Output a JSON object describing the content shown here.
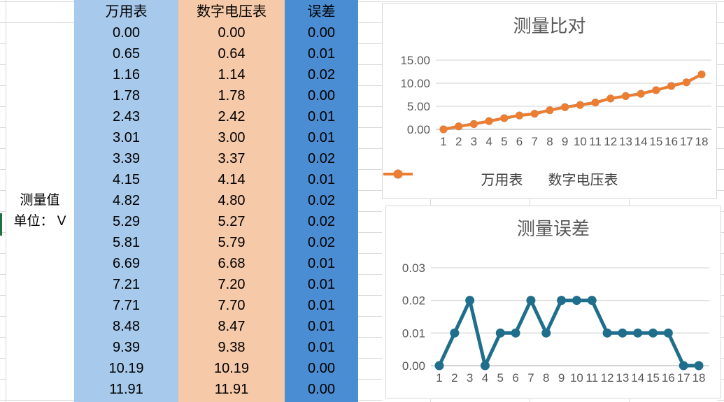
{
  "sheet": {
    "row_label": {
      "line1": "测量值",
      "line2": "单位： V"
    },
    "columns": [
      {
        "header": "万用表",
        "color": "#a6c9ec"
      },
      {
        "header": "数字电压表",
        "color": "#f6c9a8"
      },
      {
        "header": "误差",
        "color": "#4a8dd3"
      }
    ],
    "rows": [
      [
        "0.00",
        "0.00",
        "0.00"
      ],
      [
        "0.65",
        "0.64",
        "0.01"
      ],
      [
        "1.16",
        "1.14",
        "0.02"
      ],
      [
        "1.78",
        "1.78",
        "0.00"
      ],
      [
        "2.43",
        "2.42",
        "0.01"
      ],
      [
        "3.01",
        "3.00",
        "0.01"
      ],
      [
        "3.39",
        "3.37",
        "0.02"
      ],
      [
        "4.15",
        "4.14",
        "0.01"
      ],
      [
        "4.82",
        "4.80",
        "0.02"
      ],
      [
        "5.29",
        "5.27",
        "0.02"
      ],
      [
        "5.81",
        "5.79",
        "0.02"
      ],
      [
        "6.69",
        "6.68",
        "0.01"
      ],
      [
        "7.21",
        "7.20",
        "0.01"
      ],
      [
        "7.71",
        "7.70",
        "0.01"
      ],
      [
        "8.48",
        "8.47",
        "0.01"
      ],
      [
        "9.39",
        "9.38",
        "0.01"
      ],
      [
        "10.19",
        "10.19",
        "0.00"
      ],
      [
        "11.91",
        "11.91",
        "0.00"
      ]
    ]
  },
  "chart_data": [
    {
      "type": "line",
      "title": "测量比对",
      "categories": [
        "1",
        "2",
        "3",
        "4",
        "5",
        "6",
        "7",
        "8",
        "9",
        "10",
        "11",
        "12",
        "13",
        "14",
        "15",
        "16",
        "17",
        "18"
      ],
      "series": [
        {
          "name": "万用表",
          "color": "#1f6e8c",
          "values": [
            0.0,
            0.65,
            1.16,
            1.78,
            2.43,
            3.01,
            3.39,
            4.15,
            4.82,
            5.29,
            5.81,
            6.69,
            7.21,
            7.71,
            8.48,
            9.39,
            10.19,
            11.91
          ]
        },
        {
          "name": "数字电压表",
          "color": "#ed7d31",
          "values": [
            0.0,
            0.64,
            1.14,
            1.78,
            2.42,
            3.0,
            3.37,
            4.14,
            4.8,
            5.27,
            5.79,
            6.68,
            7.2,
            7.7,
            8.47,
            9.38,
            10.19,
            11.91
          ]
        }
      ],
      "y_ticks": [
        "0.00",
        "5.00",
        "10.00",
        "15.00"
      ],
      "ylim": [
        0,
        15
      ],
      "xlabel": "",
      "ylabel": "",
      "grid": true,
      "legend_position": "bottom"
    },
    {
      "type": "line",
      "title": "测量误差",
      "categories": [
        "1",
        "2",
        "3",
        "4",
        "5",
        "6",
        "7",
        "8",
        "9",
        "10",
        "11",
        "12",
        "13",
        "14",
        "15",
        "16",
        "17",
        "18"
      ],
      "series": [
        {
          "name": "误差",
          "color": "#1f6e8c",
          "values": [
            0.0,
            0.01,
            0.02,
            0.0,
            0.01,
            0.01,
            0.02,
            0.01,
            0.02,
            0.02,
            0.02,
            0.01,
            0.01,
            0.01,
            0.01,
            0.01,
            0.0,
            0.0
          ]
        }
      ],
      "y_ticks": [
        "0.00",
        "0.01",
        "0.02",
        "0.03"
      ],
      "ylim": [
        0,
        0.03
      ],
      "xlabel": "",
      "ylabel": "",
      "grid": true,
      "legend_position": "none"
    }
  ],
  "colors": {
    "grid": "#d9d9d9",
    "axis": "#bfbfbf",
    "axis_text": "#595959",
    "title_text": "#595959",
    "legend_text": "#404040",
    "green_marker": "#1e7145"
  }
}
